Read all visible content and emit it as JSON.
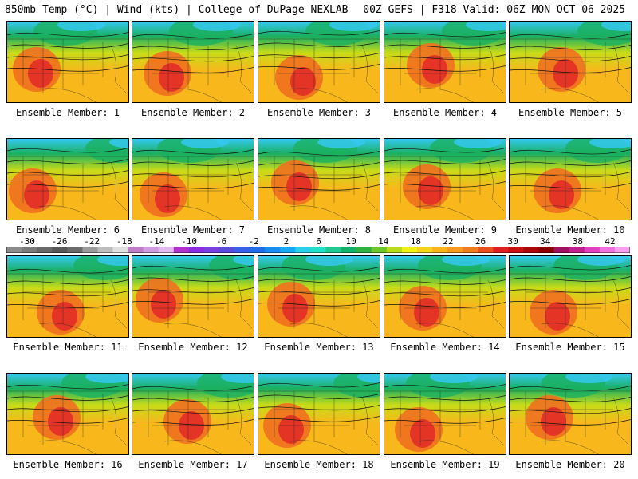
{
  "header": {
    "left": "850mb Temp (°C) | Wind (kts) | College of DuPage NEXLAB",
    "right": "00Z GEFS | F318 Valid: 06Z MON OCT 06 2025"
  },
  "member_label_prefix": "Ensemble Member: ",
  "members": [
    {
      "id": 1,
      "label": "Ensemble Member: 1"
    },
    {
      "id": 2,
      "label": "Ensemble Member: 2"
    },
    {
      "id": 3,
      "label": "Ensemble Member: 3"
    },
    {
      "id": 4,
      "label": "Ensemble Member: 4"
    },
    {
      "id": 5,
      "label": "Ensemble Member: 5"
    },
    {
      "id": 6,
      "label": "Ensemble Member: 6"
    },
    {
      "id": 7,
      "label": "Ensemble Member: 7"
    },
    {
      "id": 8,
      "label": "Ensemble Member: 8"
    },
    {
      "id": 9,
      "label": "Ensemble Member: 9"
    },
    {
      "id": 10,
      "label": "Ensemble Member: 10"
    },
    {
      "id": 11,
      "label": "Ensemble Member: 11"
    },
    {
      "id": 12,
      "label": "Ensemble Member: 12"
    },
    {
      "id": 13,
      "label": "Ensemble Member: 13"
    },
    {
      "id": 14,
      "label": "Ensemble Member: 14"
    },
    {
      "id": 15,
      "label": "Ensemble Member: 15"
    },
    {
      "id": 16,
      "label": "Ensemble Member: 16"
    },
    {
      "id": 17,
      "label": "Ensemble Member: 17"
    },
    {
      "id": 18,
      "label": "Ensemble Member: 18"
    },
    {
      "id": 19,
      "label": "Ensemble Member: 19"
    },
    {
      "id": 20,
      "label": "Ensemble Member: 20"
    }
  ],
  "colorbar": {
    "ticks": [
      "-30",
      "-26",
      "-22",
      "-18",
      "-14",
      "-10",
      "-6",
      "-2",
      "2",
      "6",
      "10",
      "14",
      "18",
      "22",
      "26",
      "30",
      "34",
      "38",
      "42"
    ],
    "colors": [
      "#8c8c8c",
      "#7a7a7a",
      "#686868",
      "#575757",
      "#6a6a6a",
      "#9a9a9a",
      "#bdbdbd",
      "#e0e0e0",
      "#c07bc9",
      "#d09be0",
      "#e3b7f0",
      "#b030d0",
      "#8a2be2",
      "#7b3fe0",
      "#5a4cd8",
      "#3a5fe8",
      "#1f6fe8",
      "#1a8cf0",
      "#19a8f5",
      "#2ccfea",
      "#22e0c8",
      "#20c890",
      "#14b06a",
      "#30b040",
      "#6cc828",
      "#b8dc1c",
      "#f0f014",
      "#f8d21a",
      "#f8b41a",
      "#f89820",
      "#f07c20",
      "#e85020",
      "#e02020",
      "#c81010",
      "#a80808",
      "#880000",
      "#a01060",
      "#c02090",
      "#e040c0",
      "#f070e0",
      "#f8a0f0"
    ]
  },
  "map_colors": {
    "cold": "#35c8f0",
    "cool": "#1ab060",
    "mild": "#c8dc18",
    "warm": "#f8b81c",
    "hot": "#f07020",
    "hottest": "#e02828",
    "contour": "#111111",
    "border": "#222222"
  }
}
